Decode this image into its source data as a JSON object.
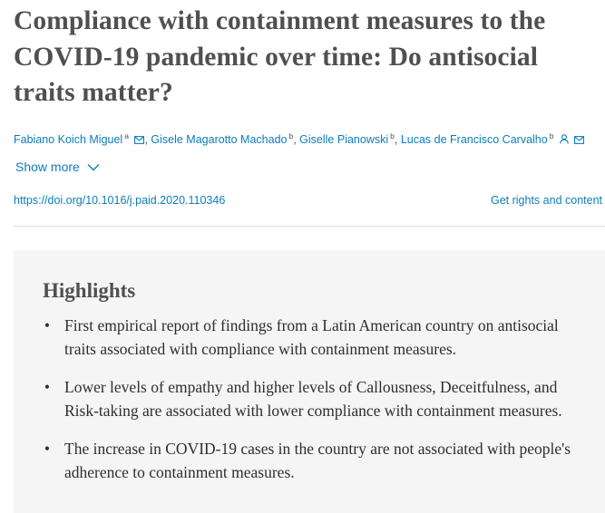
{
  "article": {
    "title": "Compliance with containment measures to the COVID-19 pandemic over time: Do antisocial traits matter?",
    "authors": [
      {
        "name": "Fabiano Koich Miguel",
        "affiliation": "a"
      },
      {
        "name": "Gisele Magarotto Machado",
        "affiliation": "b"
      },
      {
        "name": "Giselle Pianowski",
        "affiliation": "b"
      },
      {
        "name": "Lucas de Francisco Carvalho",
        "affiliation": "b"
      }
    ],
    "show_more_label": "Show more",
    "doi": "https://doi.org/10.1016/j.paid.2020.110346",
    "rights_label": "Get rights and content"
  },
  "highlights": {
    "heading": "Highlights",
    "items": [
      "First empirical report of findings from a Latin American country on antisocial traits associated with compliance with containment measures.",
      "Lower levels of empathy and higher levels of Callousness, Deceitfulness, and Risk-taking are associated with lower compliance with containment measures.",
      "The increase in COVID-19 cases in the country are not associated with people's adherence to containment measures."
    ],
    "bullet": "•"
  },
  "colors": {
    "link": "#0c7dbb",
    "title": "#505050",
    "body_text": "#2e2e2e",
    "highlights_bg": "#f5f5f5"
  },
  "icons": [
    "mail-icon",
    "person-icon",
    "chevron-down-icon"
  ]
}
